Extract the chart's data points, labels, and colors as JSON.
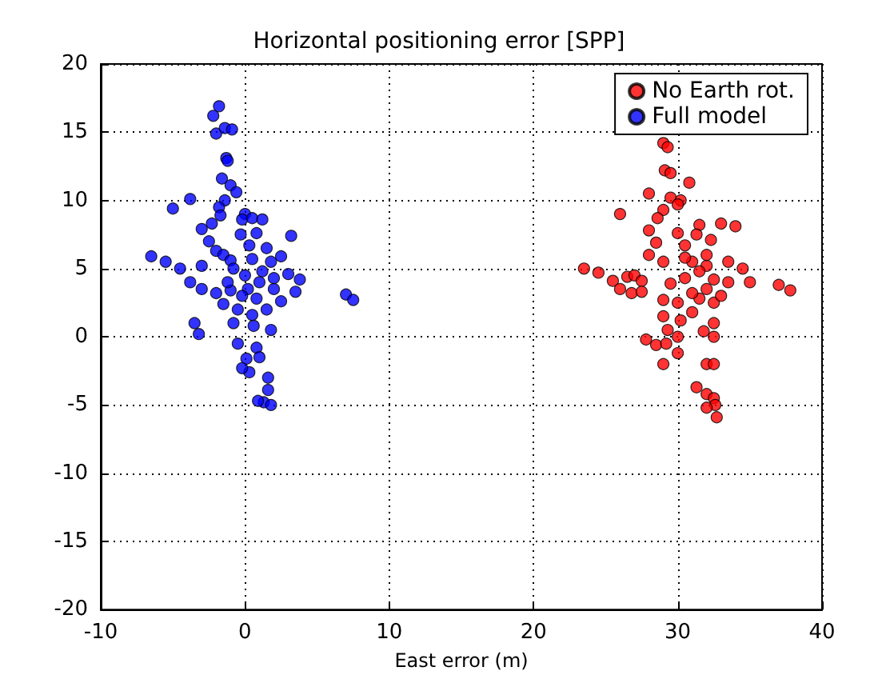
{
  "chart_data": {
    "type": "scatter",
    "title": "Horizontal positioning error [SPP]",
    "xlabel": "East error (m)",
    "xlim": [
      -10,
      40
    ],
    "xticks": [
      -10,
      0,
      10,
      20,
      30,
      40
    ],
    "ylim": [
      -20,
      20
    ],
    "yticks": [
      -20,
      -15,
      -10,
      -5,
      0,
      5,
      10,
      15,
      20
    ],
    "grid": true,
    "legend": "top right",
    "marker": "circle",
    "series": [
      {
        "name": "No Earth rot.",
        "color": "#ff0000",
        "x": [
          29.0,
          29.3,
          29.1,
          29.5,
          30.8,
          28.0,
          26.0,
          29.5,
          30.2,
          30.0,
          29.0,
          28.6,
          31.5,
          33.0,
          34.0,
          28.0,
          30.0,
          31.3,
          32.3,
          28.5,
          30.5,
          28.0,
          29.0,
          31.0,
          32.0,
          33.5,
          34.5,
          23.5,
          24.5,
          25.5,
          26.5,
          27.0,
          27.5,
          26.0,
          26.8,
          27.5,
          29.5,
          30.5,
          31.5,
          32.5,
          33.5,
          35.0,
          37.0,
          37.8,
          29.0,
          30.0,
          31.5,
          32.5,
          29.0,
          30.2,
          31.0,
          32.5,
          29.3,
          30.0,
          31.8,
          32.5,
          27.8,
          28.5,
          29.2,
          30.0,
          29.0,
          32.0,
          32.5,
          31.3,
          32.0,
          32.5,
          32.6,
          32.0,
          32.7,
          32.0,
          33.0,
          31.0,
          30.5,
          32.0
        ],
        "values": [
          14.2,
          13.9,
          12.2,
          12.0,
          11.3,
          10.5,
          9.0,
          10.2,
          10.0,
          9.7,
          9.3,
          8.7,
          8.2,
          8.3,
          8.1,
          7.8,
          7.6,
          7.5,
          7.1,
          6.9,
          6.7,
          6.0,
          5.5,
          5.5,
          5.2,
          5.5,
          5.0,
          5.0,
          4.7,
          4.1,
          4.4,
          4.5,
          4.1,
          3.5,
          3.2,
          3.3,
          3.9,
          4.3,
          4.8,
          4.2,
          4.0,
          4.0,
          3.8,
          3.4,
          2.7,
          2.5,
          2.8,
          2.5,
          1.5,
          1.2,
          1.8,
          1.0,
          0.5,
          0.0,
          0.4,
          0.0,
          -0.2,
          -0.6,
          -0.5,
          -1.2,
          -2.0,
          -2.0,
          -2.0,
          -3.7,
          -4.2,
          -4.5,
          -5.0,
          -5.2,
          -5.9,
          3.5,
          3.0,
          3.2,
          5.8,
          6.0
        ]
      },
      {
        "name": "Full model",
        "color": "#0000ff",
        "x": [
          -1.8,
          -2.2,
          -2.0,
          -1.4,
          -0.9,
          -1.3,
          -1.2,
          -1.6,
          -1.0,
          -0.6,
          -1.4,
          -5.0,
          -3.8,
          -1.8,
          -1.7,
          -2.3,
          -3.0,
          0.0,
          -0.2,
          0.5,
          1.2,
          0.8,
          3.2,
          -2.5,
          -2.0,
          -1.5,
          0.3,
          1.5,
          -6.5,
          -5.5,
          -4.5,
          -3.0,
          -1.0,
          0.5,
          1.8,
          2.5,
          -3.8,
          -3.0,
          -2.0,
          -1.0,
          0.2,
          1.0,
          2.0,
          3.0,
          3.8,
          7.0,
          7.5,
          3.5,
          -3.5,
          -3.2,
          -1.5,
          -0.5,
          0.5,
          1.5,
          2.5,
          -0.8,
          0.6,
          1.8,
          -0.5,
          0.8,
          0.1,
          1.0,
          0.3,
          -0.2,
          1.6,
          1.6,
          1.3,
          1.8,
          0.9,
          2.0,
          0.0,
          -0.3,
          -0.8,
          -0.2,
          0.8,
          1.2,
          -1.2
        ],
        "values": [
          16.9,
          16.2,
          14.9,
          15.3,
          15.2,
          13.1,
          12.9,
          11.6,
          11.1,
          10.6,
          10.0,
          9.4,
          10.1,
          9.5,
          8.9,
          8.3,
          7.9,
          9.0,
          8.6,
          8.7,
          8.6,
          7.6,
          7.4,
          7.0,
          6.3,
          6.0,
          6.7,
          6.5,
          5.9,
          5.5,
          5.0,
          5.2,
          5.6,
          5.7,
          5.5,
          5.9,
          4.0,
          3.5,
          3.2,
          3.4,
          3.5,
          4.0,
          4.3,
          4.6,
          4.2,
          3.1,
          2.7,
          3.3,
          1.0,
          0.2,
          2.4,
          2.0,
          1.6,
          2.0,
          2.6,
          1.0,
          0.8,
          0.5,
          -0.5,
          -0.8,
          -1.6,
          -1.5,
          -2.6,
          -2.3,
          -3.0,
          -3.9,
          -4.8,
          -5.0,
          -4.7,
          3.5,
          4.5,
          7.5,
          5.0,
          3.0,
          2.8,
          4.8,
          4.0
        ]
      }
    ]
  }
}
